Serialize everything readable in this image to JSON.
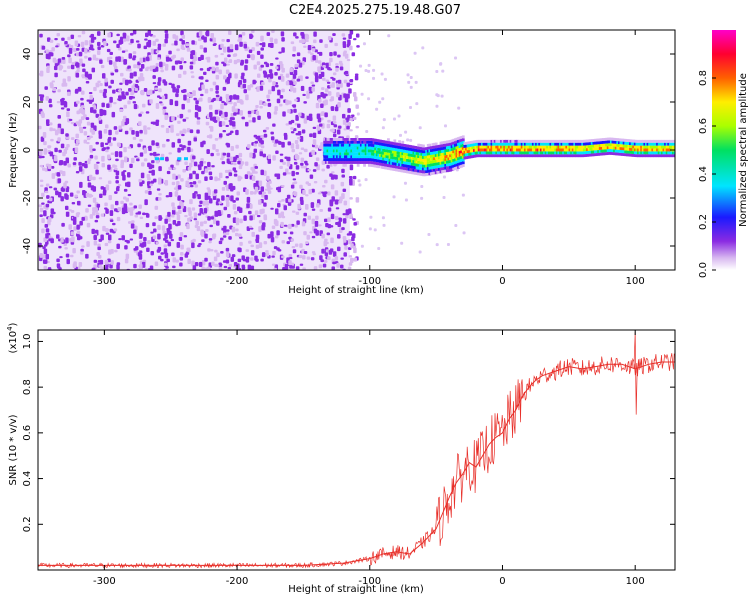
{
  "title": "C2E4.2025.275.19.48.G07",
  "chart_data": [
    {
      "type": "heatmap",
      "name": "spectrogram",
      "xlabel": "Height of straight line (km)",
      "ylabel": "Frequency (Hz)",
      "xlim": [
        -350,
        130
      ],
      "ylim": [
        -50,
        50
      ],
      "xticks": [
        -300,
        -200,
        -100,
        0,
        100
      ],
      "yticks": [
        -40,
        -20,
        0,
        20,
        40
      ],
      "colorbar": {
        "label": "Normalized spectral amplitude",
        "ticks": [
          0.0,
          0.2,
          0.4,
          0.6,
          0.8
        ],
        "range": [
          0,
          1
        ]
      },
      "signal_track": {
        "x": [
          -135,
          -115,
          -100,
          -90,
          -80,
          -70,
          -60,
          -50,
          -40,
          -30,
          -20,
          -10,
          0,
          20,
          40,
          60,
          80,
          100,
          130
        ],
        "freq": [
          0,
          0,
          0,
          -1,
          -2,
          -3,
          -4,
          -3,
          -2,
          0,
          1,
          1,
          1,
          1,
          1,
          1,
          2,
          1,
          1
        ],
        "amplitude": [
          0.5,
          0.6,
          0.6,
          0.7,
          0.7,
          0.75,
          0.8,
          0.85,
          0.9,
          0.95,
          0.95,
          0.95,
          1.0,
          0.95,
          0.95,
          0.9,
          0.9,
          0.95,
          0.9
        ]
      }
    },
    {
      "type": "line",
      "name": "snr",
      "xlabel": "Height of straight line (km)",
      "ylabel": "SNR (10 * v/v)",
      "scale_label": "(x10",
      "scale_exp": "4",
      "scale_close": ")",
      "xlim": [
        -350,
        130
      ],
      "ylim": [
        0,
        1.05
      ],
      "xticks": [
        -300,
        -200,
        -100,
        0,
        100
      ],
      "yticks": [
        0.2,
        0.4,
        0.6,
        0.8,
        1.0
      ],
      "color": "#e8302a",
      "series": {
        "x": [
          -350,
          -300,
          -250,
          -200,
          -150,
          -120,
          -110,
          -100,
          -90,
          -80,
          -70,
          -60,
          -50,
          -45,
          -40,
          -35,
          -30,
          -25,
          -20,
          -15,
          -10,
          -5,
          0,
          5,
          10,
          15,
          20,
          25,
          30,
          40,
          50,
          60,
          70,
          80,
          90,
          100,
          110,
          120,
          130
        ],
        "y": [
          0.02,
          0.02,
          0.02,
          0.02,
          0.02,
          0.03,
          0.04,
          0.05,
          0.07,
          0.08,
          0.07,
          0.12,
          0.18,
          0.25,
          0.32,
          0.38,
          0.42,
          0.47,
          0.45,
          0.5,
          0.55,
          0.58,
          0.6,
          0.66,
          0.7,
          0.76,
          0.8,
          0.83,
          0.85,
          0.87,
          0.89,
          0.88,
          0.89,
          0.9,
          0.9,
          0.88,
          0.9,
          0.91,
          0.91
        ]
      }
    }
  ]
}
